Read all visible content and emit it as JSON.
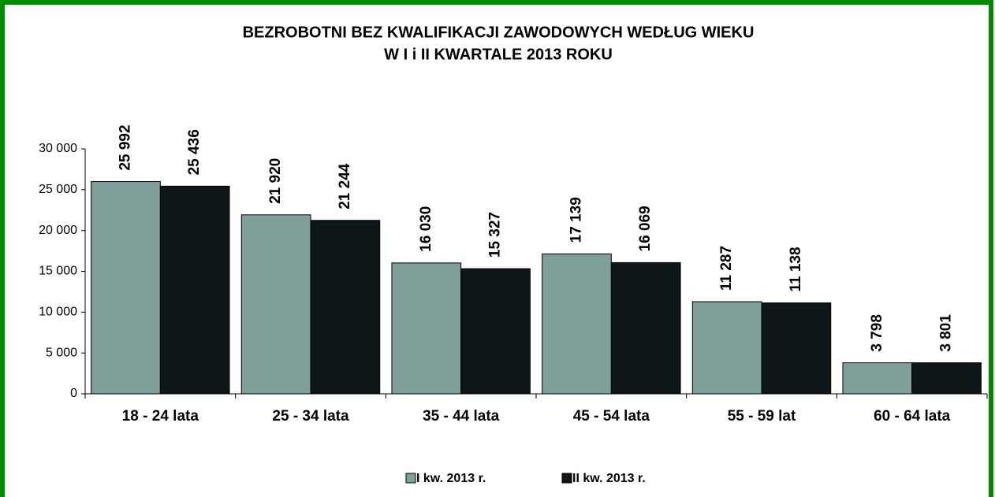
{
  "chart_data": {
    "type": "bar",
    "title": [
      "BEZROBOTNI BEZ KWALIFIKACJI ZAWODOWYCH WEDŁUG  WIEKU",
      "W I i II KWARTALE 2013 ROKU"
    ],
    "categories": [
      "18 - 24 lata",
      "25 - 34 lata",
      "35 - 44 lata",
      "45 - 54 lata",
      "55 - 59 lat",
      "60 - 64 lata"
    ],
    "series": [
      {
        "name": "I kw. 2013 r.",
        "color": "#7f9f9b",
        "values": [
          25992,
          21920,
          16030,
          17139,
          11287,
          3798
        ],
        "value_labels": [
          "25 992",
          "21 920",
          "16 030",
          "17 139",
          "11 287",
          "3 798"
        ]
      },
      {
        "name": "II kw. 2013 r.",
        "color": "#0d1717",
        "values": [
          25436,
          21244,
          15327,
          16069,
          11138,
          3801
        ],
        "value_labels": [
          "25 436",
          "21 244",
          "15 327",
          "16 069",
          "11 138",
          "3 801"
        ]
      }
    ],
    "ylim": [
      0,
      30000
    ],
    "yticks": [
      0,
      {
        "value": 5000,
        "label": "5 000"
      },
      {
        "value": 10000,
        "label": "10 000"
      },
      {
        "value": 15000,
        "label": "15 000"
      },
      {
        "value": 20000,
        "label": "20 000"
      },
      {
        "value": 25000,
        "label": "25 000"
      },
      {
        "value": 30000,
        "label": "30 000"
      }
    ],
    "grid": false,
    "legend": "bottom"
  }
}
